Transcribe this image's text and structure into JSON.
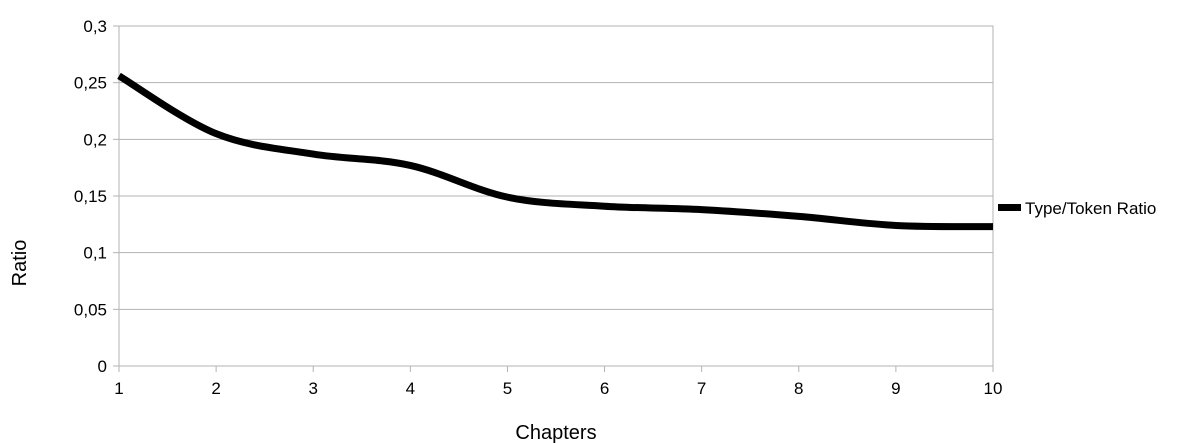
{
  "chart_data": {
    "type": "line",
    "title": "",
    "xlabel": "Chapters",
    "ylabel": "Ratio",
    "x": [
      1,
      2,
      3,
      4,
      5,
      6,
      7,
      8,
      9,
      10
    ],
    "x_tick_labels": [
      "1",
      "2",
      "3",
      "4",
      "5",
      "6",
      "7",
      "8",
      "9",
      "10"
    ],
    "y_tick_labels": [
      "0",
      "0,05",
      "0,1",
      "0,15",
      "0,2",
      "0,25",
      "0,3"
    ],
    "y_ticks": [
      0,
      0.05,
      0.1,
      0.15,
      0.2,
      0.25,
      0.3
    ],
    "xlim": [
      1,
      10
    ],
    "ylim": [
      0,
      0.3
    ],
    "grid": "horizontal",
    "legend_position": "right",
    "series": [
      {
        "name": "Type/Token Ratio",
        "color": "#000000",
        "values": [
          0.256,
          0.205,
          0.187,
          0.177,
          0.149,
          0.141,
          0.138,
          0.132,
          0.124,
          0.123
        ]
      }
    ]
  }
}
